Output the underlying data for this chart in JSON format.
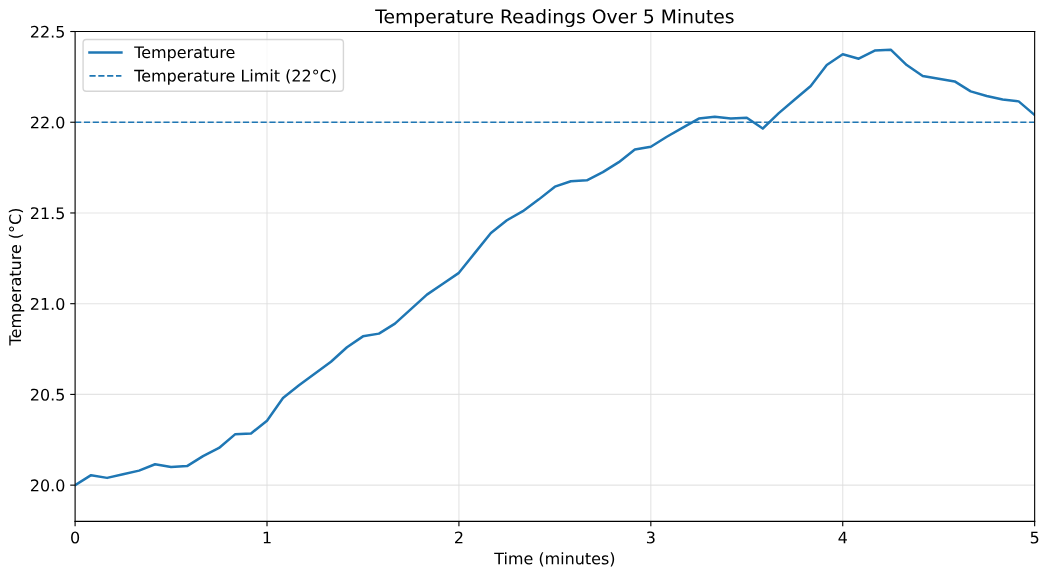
{
  "chart_data": {
    "type": "line",
    "title": "Temperature Readings Over 5 Minutes",
    "xlabel": "Time (minutes)",
    "ylabel": "Temperature (°C)",
    "x": [
      0,
      0.0833,
      0.1667,
      0.25,
      0.3333,
      0.4167,
      0.5,
      0.5833,
      0.6667,
      0.75,
      0.8333,
      0.9167,
      1,
      1.0833,
      1.1667,
      1.25,
      1.3333,
      1.4167,
      1.5,
      1.5833,
      1.6667,
      1.75,
      1.8333,
      1.9167,
      2,
      2.0833,
      2.1667,
      2.25,
      2.3333,
      2.4167,
      2.5,
      2.5833,
      2.6667,
      2.75,
      2.8333,
      2.9167,
      3,
      3.0833,
      3.1667,
      3.25,
      3.3333,
      3.4167,
      3.5,
      3.5833,
      3.6667,
      3.75,
      3.8333,
      3.9167,
      4,
      4.0833,
      4.1667,
      4.25,
      4.3333,
      4.4167,
      4.5,
      4.5833,
      4.6667,
      4.75,
      4.8333,
      4.9167,
      5
    ],
    "series": [
      {
        "name": "Temperature",
        "color": "#1f77b4",
        "values": [
          20.0,
          20.055,
          20.04,
          20.06,
          20.08,
          20.115,
          20.1,
          20.105,
          20.16,
          20.205,
          20.28,
          20.285,
          20.355,
          20.48,
          20.55,
          20.615,
          20.68,
          20.76,
          20.82,
          20.835,
          20.89,
          20.97,
          21.05,
          21.11,
          21.17,
          21.28,
          21.39,
          21.46,
          21.51,
          21.575,
          21.645,
          21.675,
          21.68,
          21.725,
          21.78,
          21.85,
          21.865,
          21.92,
          21.97,
          22.02,
          22.03,
          22.02,
          22.025,
          21.965,
          22.05,
          22.125,
          22.2,
          22.315,
          22.375,
          22.35,
          22.395,
          22.4,
          22.315,
          22.255,
          22.24,
          22.225,
          22.17,
          22.145,
          22.125,
          22.115,
          22.04
        ]
      }
    ],
    "ref_lines": [
      {
        "axis": "y",
        "value": 22,
        "label": "Temperature Limit (22°C)",
        "color": "#1f77b4",
        "line_style": "dashed"
      }
    ],
    "xlim": [
      0,
      5
    ],
    "xticks": [
      0,
      1,
      2,
      3,
      4,
      5
    ],
    "ylim": [
      19.8,
      22.5
    ],
    "yticks": [
      {
        "value": 20,
        "label": "20.0"
      },
      {
        "value": 20.5,
        "label": "20.5"
      },
      {
        "value": 21,
        "label": "21.0"
      },
      {
        "value": 21.5,
        "label": "21.5"
      },
      {
        "value": 22,
        "label": "22.0"
      },
      {
        "value": 22.5,
        "label": "22.5"
      }
    ],
    "grid": true,
    "legend": "top left",
    "line_style": "solid"
  }
}
